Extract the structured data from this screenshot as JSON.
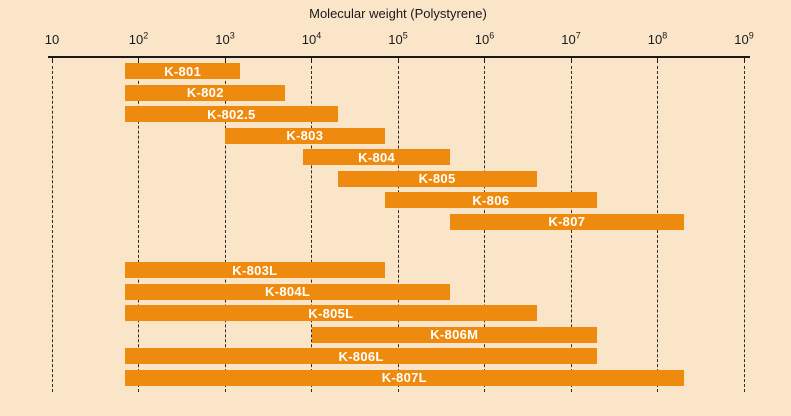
{
  "colors": {
    "background": "#FAE5C8",
    "bar": "#EE8B0E",
    "bar_label_text": "#FFFFFF",
    "axis_ink": "#1A1A1A",
    "grid_dash": "#2B2B2B"
  },
  "chart_data": {
    "type": "bar",
    "variant": "horizontal-range-bars",
    "title": "Molecular weight (Polystyrene)",
    "xlabel": "Molecular weight (Polystyrene)",
    "x_scale": "log10",
    "xlim": [
      10,
      1000000000
    ],
    "grid": "vertical dotted line at every decade",
    "legend": "none",
    "x_ticks": [
      {
        "value": 10,
        "text": "10",
        "sup": ""
      },
      {
        "value": 100,
        "text": "10",
        "sup": "2"
      },
      {
        "value": 1000,
        "text": "10",
        "sup": "3"
      },
      {
        "value": 10000,
        "text": "10",
        "sup": "4"
      },
      {
        "value": 100000,
        "text": "10",
        "sup": "5"
      },
      {
        "value": 1000000,
        "text": "10",
        "sup": "6"
      },
      {
        "value": 10000000,
        "text": "10",
        "sup": "7"
      },
      {
        "value": 100000000,
        "text": "10",
        "sup": "8"
      },
      {
        "value": 1000000000,
        "text": "10",
        "sup": "9"
      }
    ],
    "groups": [
      {
        "name": "upper-group",
        "rows": [
          {
            "label": "K-801",
            "range": [
              70,
              1500
            ]
          },
          {
            "label": "K-802",
            "range": [
              70,
              5000
            ]
          },
          {
            "label": "K-802.5",
            "range": [
              70,
              20000
            ]
          },
          {
            "label": "K-803",
            "range": [
              1000,
              70000
            ]
          },
          {
            "label": "K-804",
            "range": [
              8000,
              400000
            ]
          },
          {
            "label": "K-805",
            "range": [
              20000,
              4000000
            ]
          },
          {
            "label": "K-806",
            "range": [
              70000,
              20000000
            ]
          },
          {
            "label": "K-807",
            "range": [
              400000,
              200000000
            ]
          }
        ]
      },
      {
        "name": "lower-group",
        "rows": [
          {
            "label": "K-803L",
            "range": [
              70,
              70000
            ]
          },
          {
            "label": "K-804L",
            "range": [
              70,
              400000
            ]
          },
          {
            "label": "K-805L",
            "range": [
              70,
              4000000
            ]
          },
          {
            "label": "K-806M",
            "range": [
              10000,
              20000000
            ]
          },
          {
            "label": "K-806L",
            "range": [
              70,
              20000000
            ]
          },
          {
            "label": "K-807L",
            "range": [
              70,
              200000000
            ]
          }
        ]
      }
    ]
  }
}
